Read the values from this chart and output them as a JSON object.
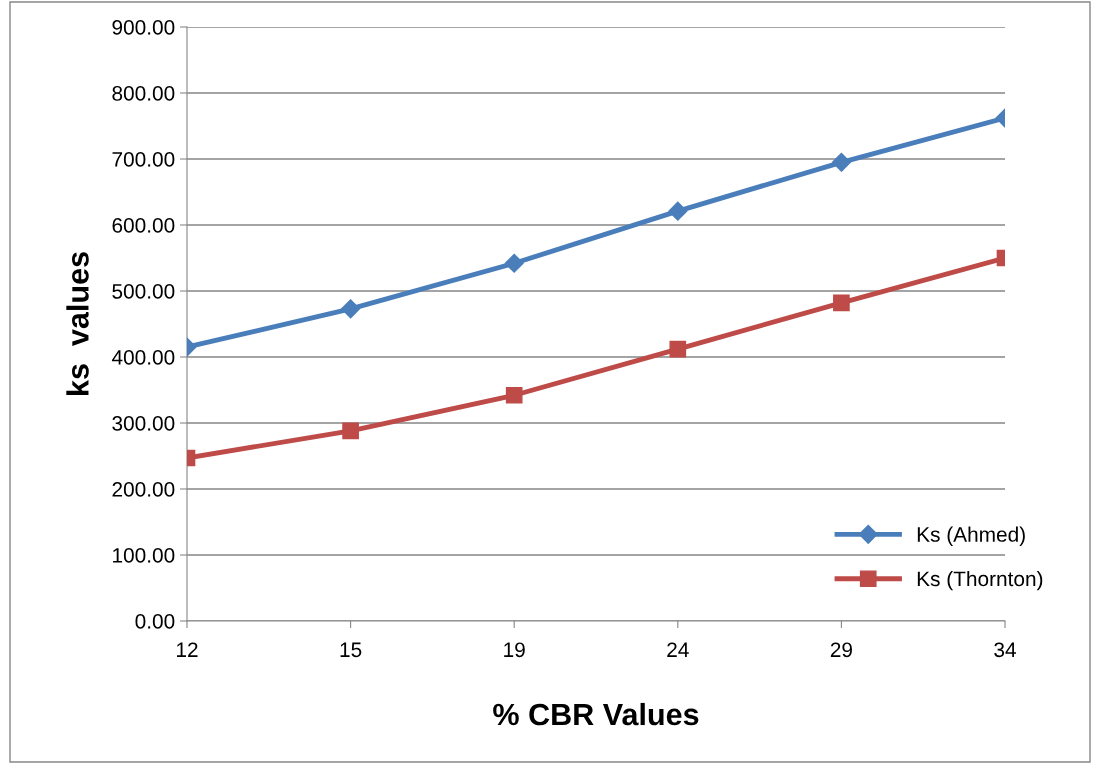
{
  "chart_data": {
    "type": "line",
    "xlabel": "% CBR Values",
    "ylabel": "ks  values",
    "categories": [
      "12",
      "15",
      "19",
      "24",
      "29",
      "34"
    ],
    "series": [
      {
        "name": "Ks (Ahmed)",
        "color": "#4a7ebb",
        "marker": "diamond",
        "values": [
          415,
          473,
          542,
          621,
          695,
          762
        ]
      },
      {
        "name": "Ks (Thornton)",
        "color": "#be4b48",
        "marker": "square",
        "values": [
          247,
          288,
          342,
          412,
          482,
          550
        ]
      }
    ],
    "ylim": [
      0,
      900
    ],
    "yticks": [
      {
        "value": 0,
        "label": "0.00"
      },
      {
        "value": 100,
        "label": "100.00"
      },
      {
        "value": 200,
        "label": "200.00"
      },
      {
        "value": 300,
        "label": "300.00"
      },
      {
        "value": 400,
        "label": "400.00"
      },
      {
        "value": 500,
        "label": "500.00"
      },
      {
        "value": 600,
        "label": "600.00"
      },
      {
        "value": 700,
        "label": "700.00"
      },
      {
        "value": 800,
        "label": "800.00"
      },
      {
        "value": 900,
        "label": "900.00"
      }
    ],
    "grid": "y",
    "legend": "bottom right",
    "line_style": "solid"
  }
}
